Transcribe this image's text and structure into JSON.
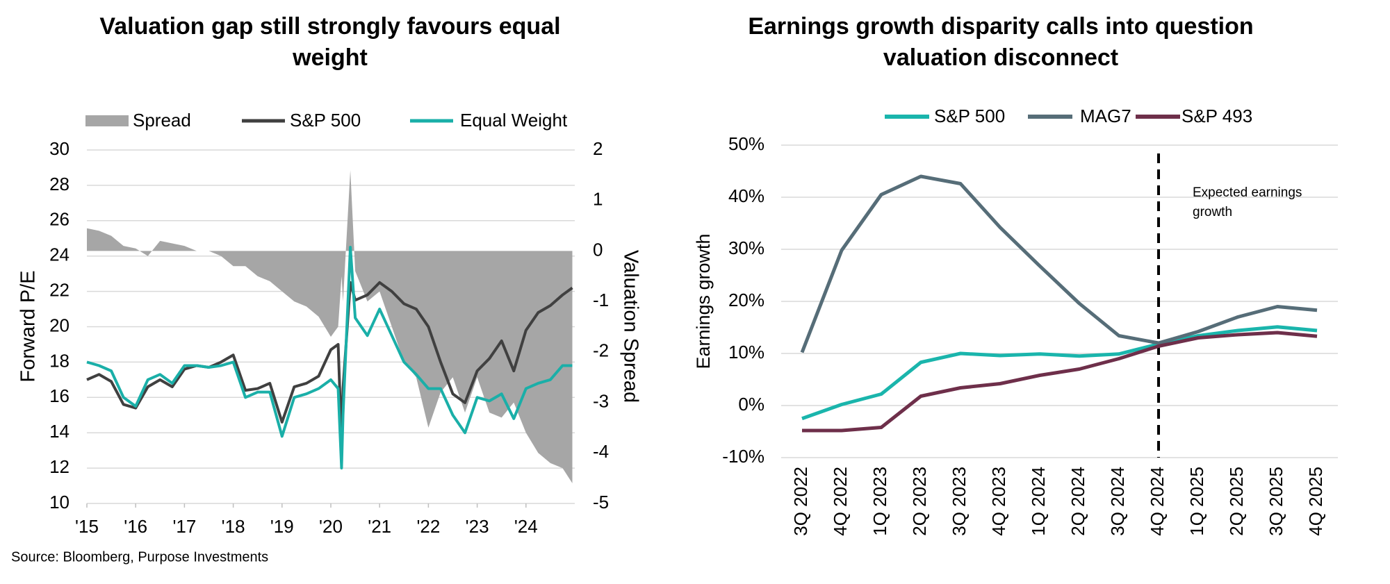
{
  "source": "Source: Bloomberg, Purpose Investments",
  "chart_data": [
    {
      "type": "line",
      "title": "Valuation gap still strongly favours equal weight",
      "y_label": "Forward P/E",
      "y2_label": "Valuation Spread",
      "xlim": [
        2015,
        2025
      ],
      "xticks": [
        {
          "value": 2015,
          "label": "'15"
        },
        {
          "value": 2016,
          "label": "'16"
        },
        {
          "value": 2017,
          "label": "'17"
        },
        {
          "value": 2018,
          "label": "'18"
        },
        {
          "value": 2019,
          "label": "'19"
        },
        {
          "value": 2020,
          "label": "'20"
        },
        {
          "value": 2021,
          "label": "'21"
        },
        {
          "value": 2022,
          "label": "'22"
        },
        {
          "value": 2023,
          "label": "'23"
        },
        {
          "value": 2024,
          "label": "'24"
        }
      ],
      "ylim": [
        10,
        30
      ],
      "yticks": [
        10,
        12,
        14,
        16,
        18,
        20,
        22,
        24,
        26,
        28,
        30
      ],
      "y2lim": [
        -5,
        2
      ],
      "y2ticks": [
        -5,
        -4,
        -3,
        -2,
        -1,
        0,
        1,
        2
      ],
      "grid": true,
      "x": [
        2015.0,
        2015.25,
        2015.5,
        2015.75,
        2016.0,
        2016.25,
        2016.5,
        2016.75,
        2017.0,
        2017.25,
        2017.5,
        2017.75,
        2018.0,
        2018.25,
        2018.5,
        2018.75,
        2019.0,
        2019.25,
        2019.5,
        2019.75,
        2020.0,
        2020.15,
        2020.22,
        2020.25,
        2020.4,
        2020.5,
        2020.75,
        2021.0,
        2021.25,
        2021.5,
        2021.75,
        2022.0,
        2022.25,
        2022.5,
        2022.75,
        2023.0,
        2023.25,
        2023.5,
        2023.75,
        2024.0,
        2024.25,
        2024.5,
        2024.75,
        2024.95
      ],
      "series": [
        {
          "name": "Spread",
          "kind": "area",
          "axis": "y2",
          "color": "#a6a6a6",
          "values": [
            0.45,
            0.4,
            0.3,
            0.1,
            0.05,
            -0.1,
            0.2,
            0.15,
            0.1,
            0.0,
            0.0,
            -0.1,
            -0.3,
            -0.3,
            -0.5,
            -0.6,
            -0.8,
            -1.0,
            -1.1,
            -1.3,
            -1.7,
            -1.5,
            -0.5,
            -1.0,
            1.6,
            -0.4,
            -1.0,
            -0.8,
            -1.5,
            -2.2,
            -2.5,
            -3.5,
            -2.8,
            -2.5,
            -3.2,
            -2.5,
            -3.2,
            -3.3,
            -3.0,
            -3.6,
            -4.0,
            -4.2,
            -4.3,
            -4.6
          ]
        },
        {
          "name": "S&P 500",
          "kind": "line",
          "color": "#404040",
          "values": [
            17.0,
            17.3,
            16.9,
            15.6,
            15.4,
            16.6,
            17.0,
            16.6,
            17.6,
            17.8,
            17.7,
            18.0,
            18.4,
            16.4,
            16.5,
            16.8,
            14.6,
            16.6,
            16.8,
            17.2,
            18.7,
            19.0,
            13.5,
            16.5,
            22.5,
            21.5,
            21.8,
            22.5,
            22.0,
            21.3,
            21.0,
            20.0,
            18.0,
            16.2,
            15.7,
            17.5,
            18.2,
            19.2,
            17.5,
            19.8,
            20.8,
            21.2,
            21.8,
            22.2
          ]
        },
        {
          "name": "Equal Weight",
          "kind": "line",
          "color": "#1aafa8",
          "values": [
            18.0,
            17.8,
            17.5,
            16.0,
            15.5,
            17.0,
            17.3,
            16.8,
            17.8,
            17.8,
            17.7,
            17.8,
            18.0,
            16.0,
            16.3,
            16.3,
            13.8,
            16.0,
            16.2,
            16.5,
            17.0,
            16.5,
            12.0,
            15.0,
            24.5,
            20.5,
            19.5,
            21.0,
            19.5,
            18.0,
            17.3,
            16.5,
            16.5,
            15.0,
            14.0,
            16.0,
            15.8,
            16.2,
            14.8,
            16.5,
            16.8,
            17.0,
            17.8,
            17.8
          ]
        }
      ]
    },
    {
      "type": "line",
      "title": "Earnings growth disparity calls into question valuation disconnect",
      "y_label": "Earnings growth",
      "annotation": "Expected earnings growth",
      "vline_at": "4Q 2024",
      "categories": [
        "3Q 2022",
        "4Q 2022",
        "1Q 2023",
        "2Q 2023",
        "3Q 2023",
        "4Q 2023",
        "1Q 2024",
        "2Q 2024",
        "3Q 2024",
        "4Q 2024",
        "1Q 2025",
        "2Q 2025",
        "3Q 2025",
        "4Q 2025"
      ],
      "ylim": [
        -10,
        50
      ],
      "yticks": [
        {
          "value": -10,
          "label": "-10%"
        },
        {
          "value": 0,
          "label": "0%"
        },
        {
          "value": 10,
          "label": "10%"
        },
        {
          "value": 20,
          "label": "20%"
        },
        {
          "value": 30,
          "label": "30%"
        },
        {
          "value": 40,
          "label": "40%"
        },
        {
          "value": 50,
          "label": "50%"
        }
      ],
      "grid": true,
      "series": [
        {
          "name": "S&P 500",
          "color": "#1ab5ac",
          "values": [
            -2.5,
            0.2,
            2.2,
            8.3,
            10.0,
            9.6,
            9.9,
            9.5,
            9.9,
            11.8,
            13.4,
            14.4,
            15.1,
            14.4
          ]
        },
        {
          "name": "MAG7",
          "color": "#566d78",
          "values": [
            10.2,
            29.8,
            40.5,
            44.0,
            42.6,
            34.2,
            26.8,
            19.6,
            13.4,
            12.0,
            14.2,
            17.0,
            19.0,
            18.3
          ]
        },
        {
          "name": "S&P 493",
          "color": "#6e2f4a",
          "values": [
            -4.8,
            -4.8,
            -4.2,
            1.8,
            3.4,
            4.2,
            5.8,
            7.0,
            9.0,
            11.4,
            13.0,
            13.6,
            14.0,
            13.3
          ]
        }
      ]
    }
  ]
}
